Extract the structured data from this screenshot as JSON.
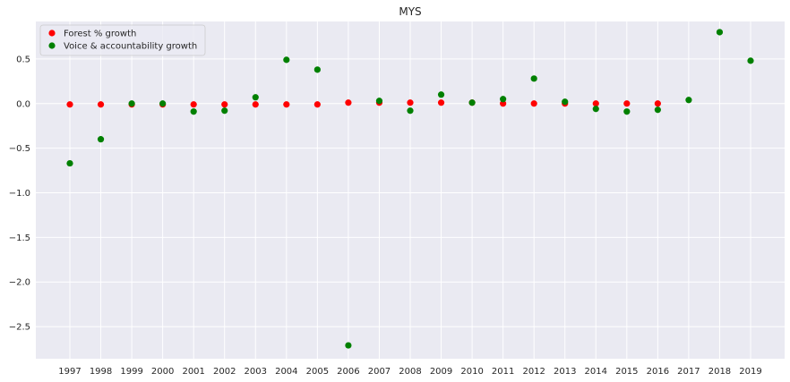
{
  "chart_data": {
    "type": "scatter",
    "title": "MYS",
    "xlabel": "",
    "ylabel": "",
    "x_ticks": [
      "1997",
      "1998",
      "1999",
      "2000",
      "2001",
      "2002",
      "2003",
      "2004",
      "2005",
      "2006",
      "2007",
      "2008",
      "2009",
      "2010",
      "2011",
      "2012",
      "2013",
      "2014",
      "2015",
      "2016",
      "2017",
      "2018",
      "2019"
    ],
    "y_ticks": [
      "0.5",
      "0.0",
      "−0.5",
      "−1.0",
      "−1.5",
      "−2.0",
      "−2.5"
    ],
    "xlim": [
      1995.9,
      2020.1
    ],
    "ylim": [
      -2.86,
      0.92
    ],
    "grid": true,
    "legend_position": "top-left",
    "background": "#eaeaf2",
    "series": [
      {
        "name": "Forest % growth",
        "color": "#ff0000",
        "x": [
          1997,
          1998,
          1999,
          2000,
          2001,
          2002,
          2003,
          2004,
          2005,
          2006,
          2007,
          2008,
          2009,
          2010,
          2011,
          2012,
          2013,
          2014,
          2015,
          2016
        ],
        "y": [
          -0.01,
          -0.01,
          -0.01,
          -0.01,
          -0.01,
          -0.01,
          -0.01,
          -0.01,
          -0.01,
          0.01,
          0.01,
          0.01,
          0.01,
          0.01,
          0.0,
          0.0,
          0.0,
          0.0,
          0.0,
          0.0
        ]
      },
      {
        "name": "Voice & accountability growth",
        "color": "#008000",
        "x": [
          1997,
          1998,
          1999,
          2000,
          2001,
          2002,
          2003,
          2004,
          2005,
          2006,
          2007,
          2008,
          2009,
          2010,
          2011,
          2012,
          2013,
          2014,
          2015,
          2016,
          2017,
          2018,
          2019
        ],
        "y": [
          -0.67,
          -0.4,
          0.0,
          0.0,
          -0.09,
          -0.08,
          0.07,
          0.49,
          0.38,
          -2.71,
          0.03,
          -0.08,
          0.1,
          0.01,
          0.05,
          0.28,
          0.02,
          -0.06,
          -0.09,
          -0.07,
          0.04,
          0.8,
          0.48
        ]
      }
    ]
  }
}
